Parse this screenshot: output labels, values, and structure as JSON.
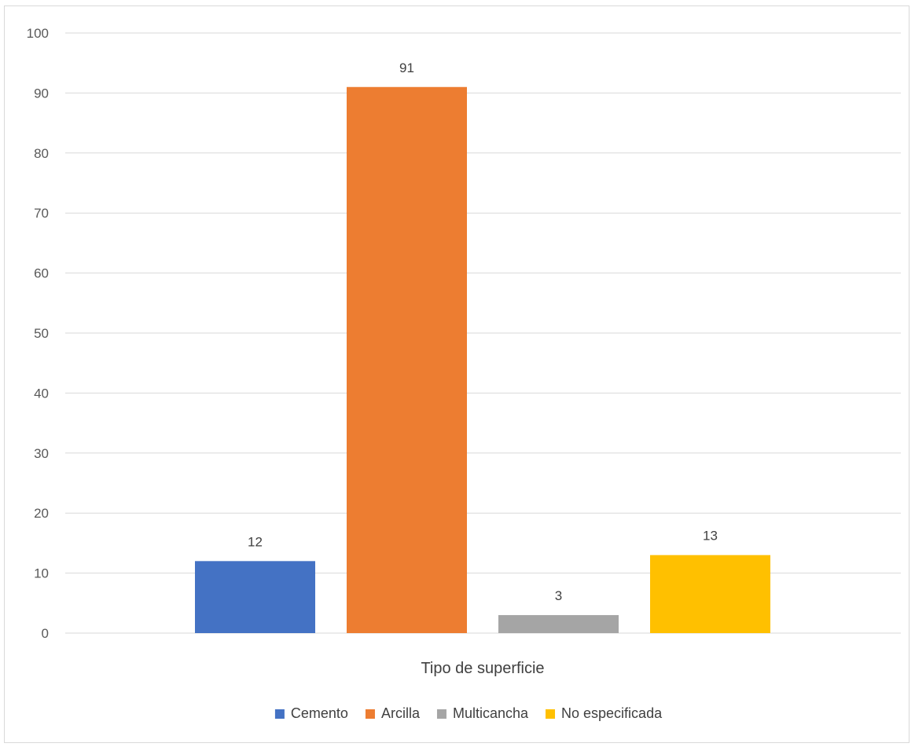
{
  "chart_data": {
    "type": "bar",
    "title": "",
    "xlabel": "Tipo de superficie",
    "ylabel": "",
    "ylim": [
      0,
      100
    ],
    "yticks": [
      0,
      10,
      20,
      30,
      40,
      50,
      60,
      70,
      80,
      90,
      100
    ],
    "grid": true,
    "legend_position": "bottom",
    "series": [
      {
        "name": "Cemento",
        "values": [
          12
        ],
        "color": "#4472C4"
      },
      {
        "name": "Arcilla",
        "values": [
          91
        ],
        "color": "#ED7D31"
      },
      {
        "name": "Multicancha",
        "values": [
          3
        ],
        "color": "#A5A5A5"
      },
      {
        "name": "No especificada",
        "values": [
          13
        ],
        "color": "#FFC000"
      }
    ]
  }
}
